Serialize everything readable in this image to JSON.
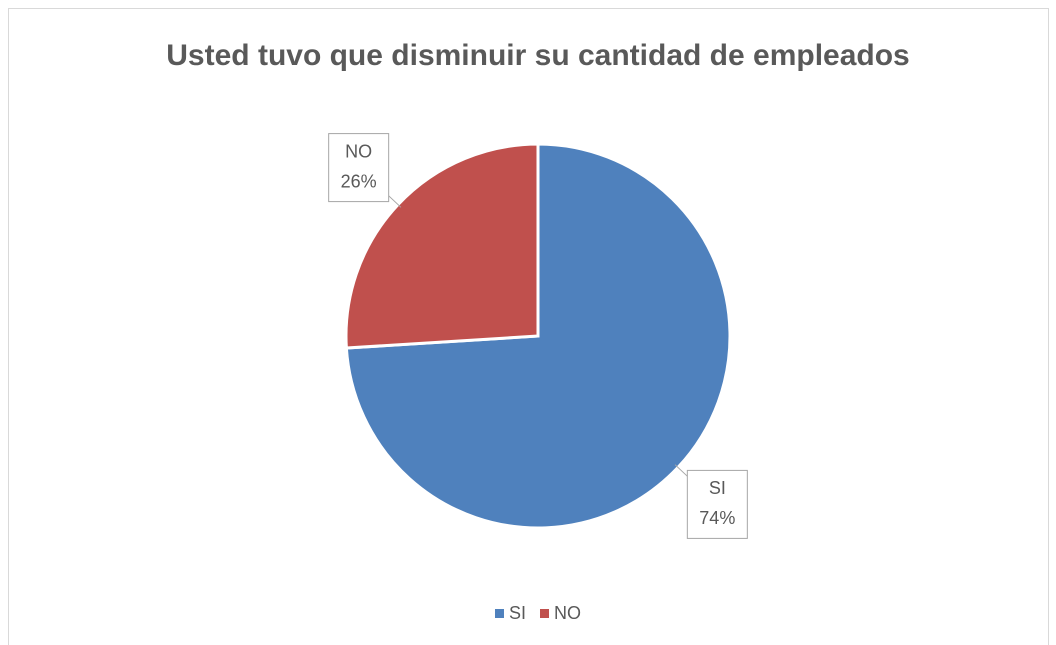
{
  "chart_data": {
    "type": "pie",
    "title": "Usted tuvo que disminuir su cantidad de empleados",
    "categories": [
      "SI",
      "NO"
    ],
    "values": [
      74,
      26
    ],
    "value_labels": [
      "74%",
      "26%"
    ],
    "colors": [
      "#4f81bd",
      "#c0504d"
    ],
    "legend": "bottom"
  }
}
